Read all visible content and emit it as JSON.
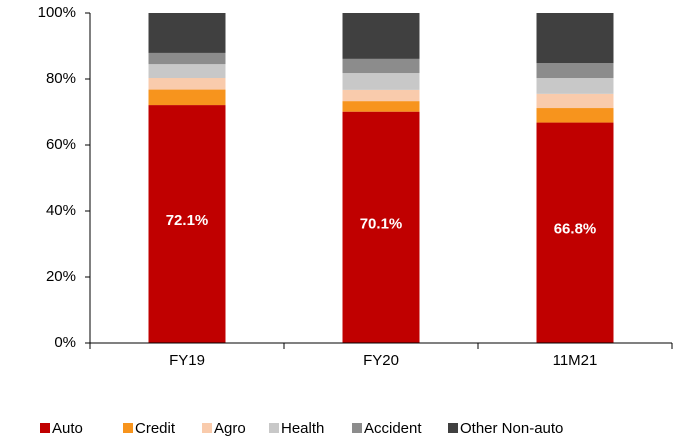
{
  "chart_data": {
    "type": "stacked_bar",
    "categories": [
      "FY19",
      "FY20",
      "11M21"
    ],
    "series": [
      {
        "name": "Auto",
        "color": "#c00000",
        "values": [
          72.1,
          70.1,
          66.8
        ],
        "value_labels": [
          "72.1%",
          "70.1%",
          "66.8%"
        ]
      },
      {
        "name": "Credit",
        "color": "#f7941d",
        "values": [
          4.7,
          3.2,
          4.4
        ]
      },
      {
        "name": "Agro",
        "color": "#f9cbac",
        "values": [
          3.5,
          3.4,
          4.3
        ]
      },
      {
        "name": "Health",
        "color": "#c8c8c8",
        "values": [
          4.2,
          5.1,
          4.8
        ]
      },
      {
        "name": "Accident",
        "color": "#8c8c8c",
        "values": [
          3.4,
          4.3,
          4.5
        ]
      },
      {
        "name": "Other Non-auto",
        "color": "#404040",
        "values": [
          12.1,
          13.9,
          15.2
        ]
      }
    ],
    "ylim": [
      0,
      100
    ],
    "yticks": [
      {
        "value": 0,
        "label": "0%"
      },
      {
        "value": 20,
        "label": "20%"
      },
      {
        "value": 40,
        "label": "40%"
      },
      {
        "value": 60,
        "label": "60%"
      },
      {
        "value": 80,
        "label": "80%"
      },
      {
        "value": 100,
        "label": "100%"
      }
    ],
    "legend": "bottom"
  }
}
